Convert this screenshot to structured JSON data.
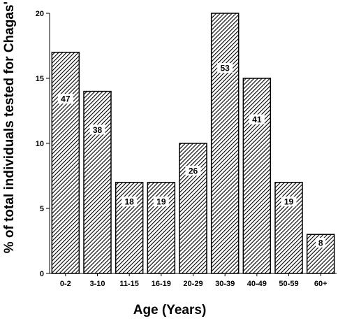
{
  "chart_data": {
    "type": "bar",
    "title": "",
    "xlabel": "Age (Years)",
    "ylabel": "% of total individuals tested for Chagas'",
    "categories": [
      "0-2",
      "3-10",
      "11-15",
      "16-19",
      "20-29",
      "30-39",
      "40-49",
      "50-59",
      "60+"
    ],
    "values": [
      17,
      14,
      7,
      7,
      10,
      20,
      15,
      7,
      3
    ],
    "bar_labels": [
      "47",
      "38",
      "18",
      "19",
      "26",
      "53",
      "41",
      "19",
      "8"
    ],
    "ylim": [
      0,
      20
    ],
    "yticks": [
      0,
      5,
      10,
      15,
      20
    ],
    "grid": false,
    "legend": "none",
    "bar_fill": "diagonal-hatch",
    "colors": {
      "bar_stroke": "#000000",
      "hatch": "#000000",
      "background": "#ffffff"
    }
  }
}
